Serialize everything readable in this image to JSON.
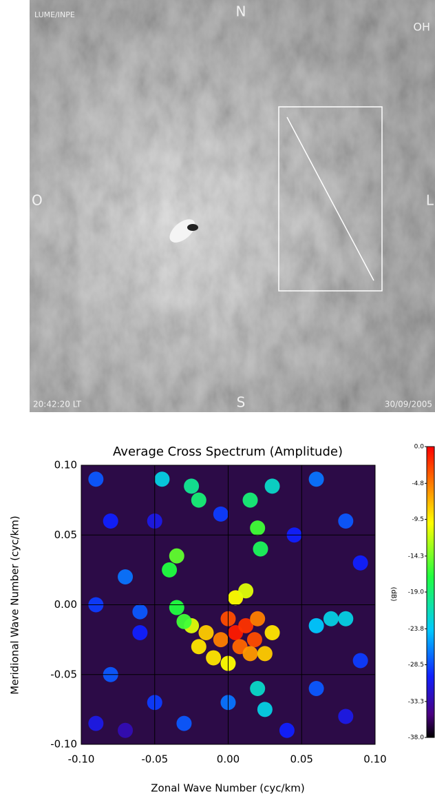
{
  "image": {
    "source": "LUME/INPE",
    "north": "N",
    "emission": "OH",
    "west": "O",
    "east": "L",
    "south": "S",
    "time": "20:42:20 LT",
    "date": "30/09/2005"
  },
  "chart_data": {
    "type": "heatmap",
    "title": "Average Cross Spectrum (Amplitude)",
    "x_label": "Zonal Wave Number (cyc/km)",
    "y_label": "Meridional Wave Number (cyc/km)",
    "colorbar_label": "(dB)",
    "xlim": [
      -0.1,
      0.1
    ],
    "ylim": [
      -0.1,
      0.1
    ],
    "clim": [
      -38,
      0
    ],
    "xticks": [
      {
        "value": -0.1,
        "label": "-0.10"
      },
      {
        "value": -0.05,
        "label": "-0.05"
      },
      {
        "value": 0,
        "label": "0.00"
      },
      {
        "value": 0.05,
        "label": "0.05"
      },
      {
        "value": 0.1,
        "label": "0.10"
      }
    ],
    "yticks": [
      {
        "value": -0.1,
        "label": "-0.10"
      },
      {
        "value": -0.05,
        "label": "-0.05"
      },
      {
        "value": 0,
        "label": "0.00"
      },
      {
        "value": 0.05,
        "label": "0.05"
      },
      {
        "value": 0.1,
        "label": "0.10"
      }
    ],
    "cticks": [
      {
        "value": 0,
        "label": "0.0"
      },
      {
        "value": -4.8,
        "label": "-4.8"
      },
      {
        "value": -9.5,
        "label": "-9.5"
      },
      {
        "value": -14.3,
        "label": "-14.3"
      },
      {
        "value": -19,
        "label": "-19.0"
      },
      {
        "value": -23.8,
        "label": "-23.8"
      },
      {
        "value": -28.5,
        "label": "-28.5"
      },
      {
        "value": -33.3,
        "label": "-33.3"
      },
      {
        "value": -38,
        "label": "-38.0"
      }
    ],
    "grid": true,
    "background": "#2c0b47",
    "colorscale": [
      [
        -38,
        "#000000"
      ],
      [
        -35,
        "#4a0080"
      ],
      [
        -30,
        "#1020ff"
      ],
      [
        -24,
        "#00c8ff"
      ],
      [
        -17,
        "#20ff40"
      ],
      [
        -10,
        "#ffff00"
      ],
      [
        -5,
        "#ff8000"
      ],
      [
        0,
        "#ff0000"
      ]
    ],
    "x": [
      0.005,
      0.012,
      0,
      0.018,
      0.008,
      -0.005,
      0.02,
      0.015,
      -0.015,
      -0.02,
      -0.01,
      0.025,
      0.03,
      0.005,
      0.012,
      0,
      -0.025,
      -0.035,
      -0.03,
      -0.035,
      -0.04,
      0.02,
      0.022,
      0.015,
      -0.025,
      -0.02,
      -0.045,
      0.03,
      0.07,
      0.06,
      0.08,
      0.02,
      0.025,
      -0.09,
      -0.08,
      -0.09,
      -0.07,
      -0.06,
      -0.08,
      -0.09,
      -0.07,
      -0.05,
      -0.03,
      0,
      0.04,
      0.06,
      0.08,
      0.09,
      0.09,
      0.08,
      0.06,
      0.045,
      -0.005,
      -0.05,
      -0.06
    ],
    "y": [
      -0.02,
      -0.015,
      -0.01,
      -0.025,
      -0.03,
      -0.025,
      -0.01,
      -0.035,
      -0.02,
      -0.03,
      -0.038,
      -0.035,
      -0.02,
      0.005,
      0.01,
      -0.042,
      -0.015,
      -0.002,
      -0.012,
      0.035,
      0.025,
      0.055,
      0.04,
      0.075,
      0.085,
      0.075,
      0.09,
      0.085,
      -0.01,
      -0.015,
      -0.01,
      -0.06,
      -0.075,
      0.09,
      0.06,
      0,
      0.02,
      -0.02,
      -0.05,
      -0.085,
      -0.09,
      -0.07,
      -0.085,
      -0.07,
      -0.09,
      -0.06,
      -0.08,
      -0.04,
      0.03,
      0.06,
      0.09,
      0.05,
      0.065,
      0.06,
      -0.005
    ],
    "values": [
      -1,
      -2,
      -3,
      -3,
      -4,
      -5,
      -5,
      -6,
      -8,
      -9,
      -9,
      -8,
      -9,
      -10,
      -11,
      -10,
      -11,
      -17,
      -16,
      -15,
      -17,
      -16,
      -18,
      -19,
      -20,
      -19,
      -23,
      -22,
      -23,
      -24,
      -23,
      -22,
      -23,
      -28,
      -30,
      -29,
      -27,
      -30,
      -28,
      -31,
      -33,
      -29,
      -28,
      -27,
      -30,
      -28,
      -31,
      -29,
      -30,
      -28,
      -27,
      -30,
      -29,
      -31,
      -28
    ]
  }
}
